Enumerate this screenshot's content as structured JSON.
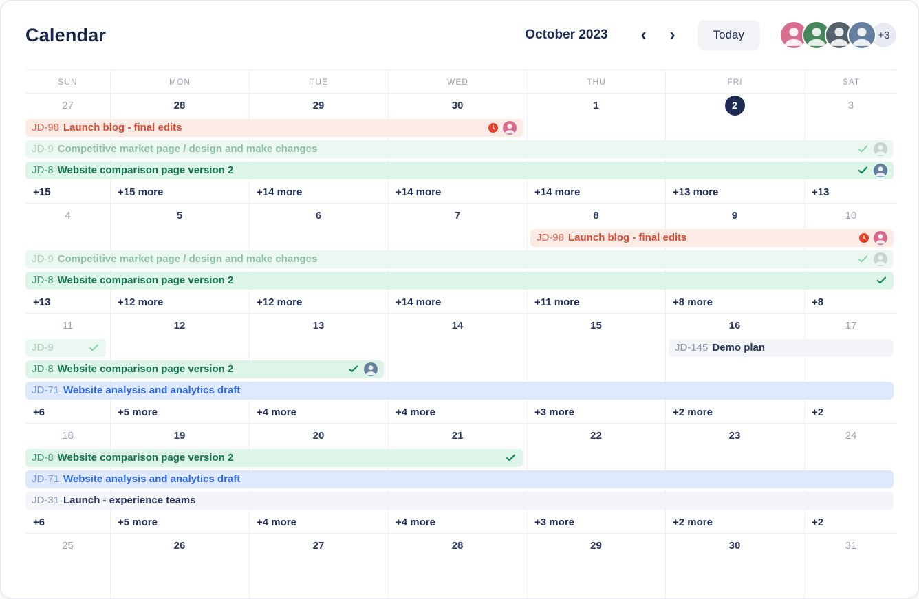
{
  "header": {
    "title": "Calendar",
    "month_label": "October 2023",
    "prev_glyph": "‹",
    "next_glyph": "›",
    "today_label": "Today",
    "avatars": [
      {
        "id": "user-1",
        "bg": "#d96d8e"
      },
      {
        "id": "user-2",
        "bg": "#47875c"
      },
      {
        "id": "user-3",
        "bg": "#55626e"
      },
      {
        "id": "user-4",
        "bg": "#64809c"
      }
    ],
    "avatar_overflow": "+3"
  },
  "colors": {
    "navy": "#1c2a54",
    "muted": "#9aa3b6",
    "grid_line": "#edeff3",
    "today_circle": "#1d2b52"
  },
  "event_palette": {
    "red": {
      "bg": "#fcebe5",
      "prefix": "#e2654f",
      "title": "#d84a33",
      "check": "#d84a33"
    },
    "green_faded": {
      "bg": "#ebf8f1",
      "prefix": "#abcfbc",
      "title": "#8cbda6",
      "check": "#84d4ab"
    },
    "green": {
      "bg": "#dcf5e8",
      "prefix": "#439a73",
      "title": "#14754d",
      "check": "#0c8a4f"
    },
    "blue": {
      "bg": "#dfe9fd",
      "prefix": "#7097ee",
      "title": "#2d67e4",
      "check": "#2d67e4"
    },
    "gray": {
      "bg": "#f3f5f9",
      "prefix": "#8d97ab",
      "title": "#28345c",
      "check": "#28345c"
    }
  },
  "weekday_header": [
    "SUN",
    "MON",
    "TUE",
    "WED",
    "THU",
    "FRI",
    "SAT"
  ],
  "weeks": [
    {
      "dates": [
        {
          "label": "27",
          "muted": true
        },
        {
          "label": "28"
        },
        {
          "label": "29"
        },
        {
          "label": "30"
        },
        {
          "label": "1"
        },
        {
          "label": "2",
          "today": true
        },
        {
          "label": "3",
          "muted": true
        }
      ],
      "event_rows": [
        [
          {
            "key": "JD-98",
            "title": "Launch blog - final edits",
            "type": "red",
            "start": 1,
            "end": 4,
            "icons": [
              {
                "type": "overdue-clock"
              },
              {
                "type": "avatar",
                "bg": "#d96d8e"
              }
            ]
          }
        ],
        [
          {
            "key": "JD-9",
            "title": "Competitive market page / design and make changes",
            "type": "green_faded",
            "start": 1,
            "end": 7,
            "icons": [
              {
                "type": "check"
              },
              {
                "type": "avatar",
                "bg": "#a9b6bf",
                "faded": true
              }
            ]
          }
        ],
        [
          {
            "key": "JD-8",
            "title": "Website comparison page version 2",
            "type": "green",
            "start": 1,
            "end": 7,
            "icons": [
              {
                "type": "check"
              },
              {
                "type": "avatar",
                "bg": "#64809c"
              }
            ]
          }
        ]
      ],
      "more": [
        "+15",
        "+15 more",
        "+14 more",
        "+14 more",
        "+14 more",
        "+13 more",
        "+13"
      ]
    },
    {
      "dates": [
        {
          "label": "4",
          "muted": true
        },
        {
          "label": "5"
        },
        {
          "label": "6"
        },
        {
          "label": "7"
        },
        {
          "label": "8"
        },
        {
          "label": "9"
        },
        {
          "label": "10",
          "muted": true
        }
      ],
      "event_rows": [
        [
          {
            "key": "JD-98",
            "title": "Launch blog - final edits",
            "type": "red",
            "start": 5,
            "end": 7,
            "icons": [
              {
                "type": "overdue-clock"
              },
              {
                "type": "avatar",
                "bg": "#d96d8e"
              }
            ]
          }
        ],
        [
          {
            "key": "JD-9",
            "title": "Competitive market page / design and make changes",
            "type": "green_faded",
            "start": 1,
            "end": 7,
            "icons": [
              {
                "type": "check"
              },
              {
                "type": "avatar",
                "bg": "#a9b6bf",
                "faded": true
              }
            ]
          }
        ],
        [
          {
            "key": "JD-8",
            "title": "Website comparison page version 2",
            "type": "green",
            "start": 1,
            "end": 7,
            "icons": [
              {
                "type": "check"
              }
            ]
          }
        ]
      ],
      "more": [
        "+13",
        "+12 more",
        "+12 more",
        "+14 more",
        "+11 more",
        "+8 more",
        "+8"
      ]
    },
    {
      "dates": [
        {
          "label": "11",
          "muted": true
        },
        {
          "label": "12"
        },
        {
          "label": "13"
        },
        {
          "label": "14"
        },
        {
          "label": "15"
        },
        {
          "label": "16"
        },
        {
          "label": "17",
          "muted": true
        }
      ],
      "event_rows": [
        [
          {
            "key": "JD-9",
            "title": "",
            "type": "green_faded",
            "start": 1,
            "end": 1,
            "icons": [
              {
                "type": "check"
              }
            ]
          },
          {
            "key": "JD-145",
            "title": "Demo plan",
            "type": "gray",
            "start": 6,
            "end": 7,
            "icons": []
          }
        ],
        [
          {
            "key": "JD-8",
            "title": "Website comparison page version 2",
            "type": "green",
            "start": 1,
            "end": 3,
            "icons": [
              {
                "type": "check"
              },
              {
                "type": "avatar",
                "bg": "#64809c"
              }
            ]
          }
        ],
        [
          {
            "key": "JD-71",
            "title": "Website analysis and analytics draft",
            "type": "blue",
            "start": 1,
            "end": 7,
            "icons": []
          }
        ]
      ],
      "more": [
        "+6",
        "+5 more",
        "+4 more",
        "+4 more",
        "+3 more",
        "+2 more",
        "+2"
      ]
    },
    {
      "dates": [
        {
          "label": "18",
          "muted": true
        },
        {
          "label": "19"
        },
        {
          "label": "20"
        },
        {
          "label": "21"
        },
        {
          "label": "22"
        },
        {
          "label": "23"
        },
        {
          "label": "24",
          "muted": true
        }
      ],
      "event_rows": [
        [
          {
            "key": "JD-8",
            "title": "Website comparison page version 2",
            "type": "green",
            "start": 1,
            "end": 4,
            "icons": [
              {
                "type": "check"
              }
            ]
          }
        ],
        [
          {
            "key": "JD-71",
            "title": "Website analysis and analytics draft",
            "type": "blue",
            "start": 1,
            "end": 7,
            "icons": []
          }
        ],
        [
          {
            "key": "JD-31",
            "title": "Launch - experience teams",
            "type": "gray",
            "start": 1,
            "end": 7,
            "icons": []
          }
        ]
      ],
      "more": [
        "+6",
        "+5 more",
        "+4 more",
        "+4 more",
        "+3 more",
        "+2 more",
        "+2"
      ]
    },
    {
      "dates": [
        {
          "label": "25",
          "muted": true
        },
        {
          "label": "26"
        },
        {
          "label": "27"
        },
        {
          "label": "28"
        },
        {
          "label": "29"
        },
        {
          "label": "30"
        },
        {
          "label": "31",
          "muted": true
        }
      ],
      "event_rows": [],
      "more": null
    }
  ]
}
